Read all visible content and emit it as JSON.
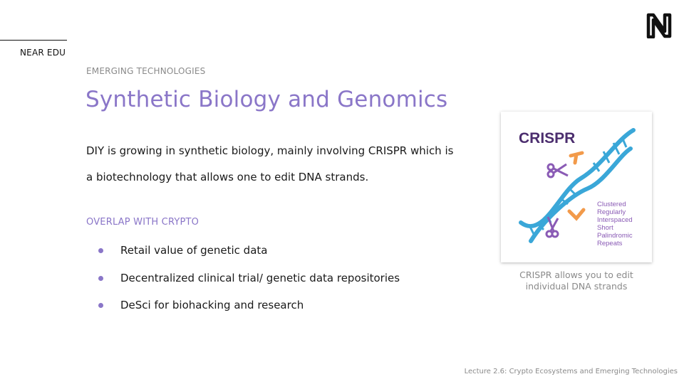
{
  "brand": {
    "label": "NEAR EDU"
  },
  "header": {
    "kicker": "EMERGING TECHNOLOGIES",
    "title": "Synthetic Biology and Genomics"
  },
  "intro": {
    "line1": "DIY is growing in synthetic biology, mainly involving CRISPR which is",
    "line2": "a biotechnology that allows one to edit DNA strands."
  },
  "overlap": {
    "heading": "OVERLAP WITH CRYPTO",
    "items": [
      "Retail value of genetic data",
      "Decentralized clinical trial/ genetic data repositories",
      "DeSci for biohacking and research"
    ]
  },
  "figure": {
    "image_title": "CRISPR",
    "image_words": [
      "Clustered",
      "Regularly",
      "Interspaced",
      "Short",
      "Palindromic",
      "Repeats"
    ],
    "caption_line1": "CRISPR allows you to edit",
    "caption_line2": "individual DNA strands",
    "colors": {
      "title": "#4b2d6e",
      "dna": "#3aa7d8",
      "orange": "#f29a4a",
      "scissors": "#8a5bb5",
      "words": "#8a5bb5"
    }
  },
  "footer": {
    "text": "Lecture 2.6: Crypto Ecosystems and Emerging Technologies"
  },
  "theme": {
    "accent": "#8a76c8"
  }
}
